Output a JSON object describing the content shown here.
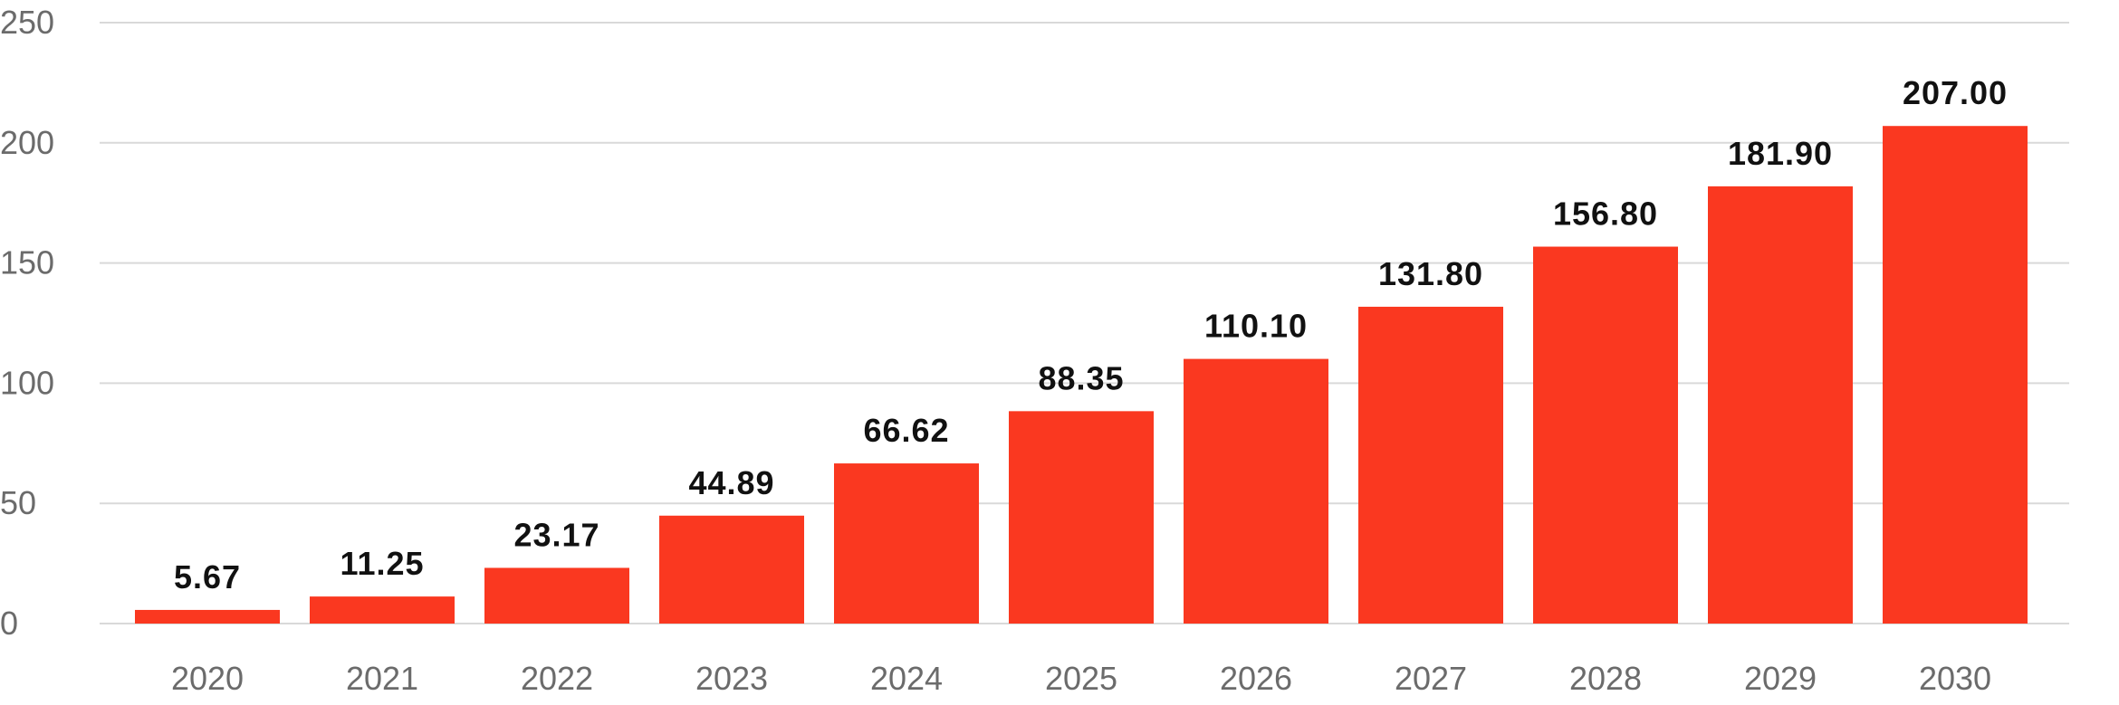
{
  "chart_data": {
    "type": "bar",
    "title": "",
    "xlabel": "",
    "ylabel": "",
    "categories": [
      "2020",
      "2021",
      "2022",
      "2023",
      "2024",
      "2025",
      "2026",
      "2027",
      "2028",
      "2029",
      "2030"
    ],
    "values": [
      5.67,
      11.25,
      23.17,
      44.89,
      66.62,
      88.35,
      110.1,
      131.8,
      156.8,
      181.9,
      207.0
    ],
    "value_labels": [
      "5.67",
      "11.25",
      "23.17",
      "44.89",
      "66.62",
      "88.35",
      "110.10",
      "131.80",
      "156.80",
      "181.90",
      "207.00"
    ],
    "ylim": [
      0,
      250
    ],
    "yticks": [
      0,
      50,
      100,
      150,
      200,
      250
    ],
    "ytick_labels": [
      "0",
      "50",
      "100",
      "150",
      "200",
      "250"
    ],
    "grid": true,
    "legend": "none",
    "colors": {
      "bar": "#fa3820"
    }
  }
}
